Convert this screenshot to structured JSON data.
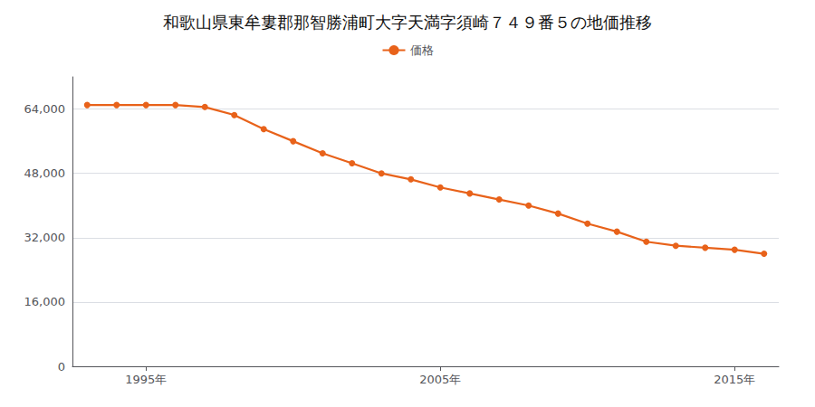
{
  "chart_data": {
    "type": "line",
    "title": "和歌山県東牟婁郡那智勝浦町大字天満字須崎７４９番５の地価推移",
    "x": [
      1993,
      1994,
      1995,
      1996,
      1997,
      1998,
      1999,
      2000,
      2001,
      2002,
      2003,
      2004,
      2005,
      2006,
      2007,
      2008,
      2009,
      2010,
      2011,
      2012,
      2013,
      2014,
      2015,
      2016
    ],
    "series": [
      {
        "name": "価格",
        "color": "#e8621a",
        "marker": "circle",
        "values": [
          65000,
          65000,
          65000,
          65000,
          64500,
          62500,
          59000,
          56000,
          53000,
          50500,
          48000,
          46500,
          44500,
          43000,
          41500,
          40000,
          38000,
          35500,
          33500,
          31000,
          30000,
          29500,
          29000,
          28000
        ]
      }
    ],
    "xlim": [
      1992.5,
      2016.5
    ],
    "xticks": [
      {
        "value": 1995,
        "label": "1995年"
      },
      {
        "value": 2005,
        "label": "2005年"
      },
      {
        "value": 2015,
        "label": "2015年"
      }
    ],
    "ylim": [
      0,
      72000
    ],
    "yticks": [
      0,
      {
        "value": 16000,
        "label": "16,000"
      },
      {
        "value": 32000,
        "label": "32,000"
      },
      {
        "value": 48000,
        "label": "48,000"
      },
      {
        "value": 64000,
        "label": "64,000"
      }
    ],
    "grid": true,
    "legend": "top"
  }
}
